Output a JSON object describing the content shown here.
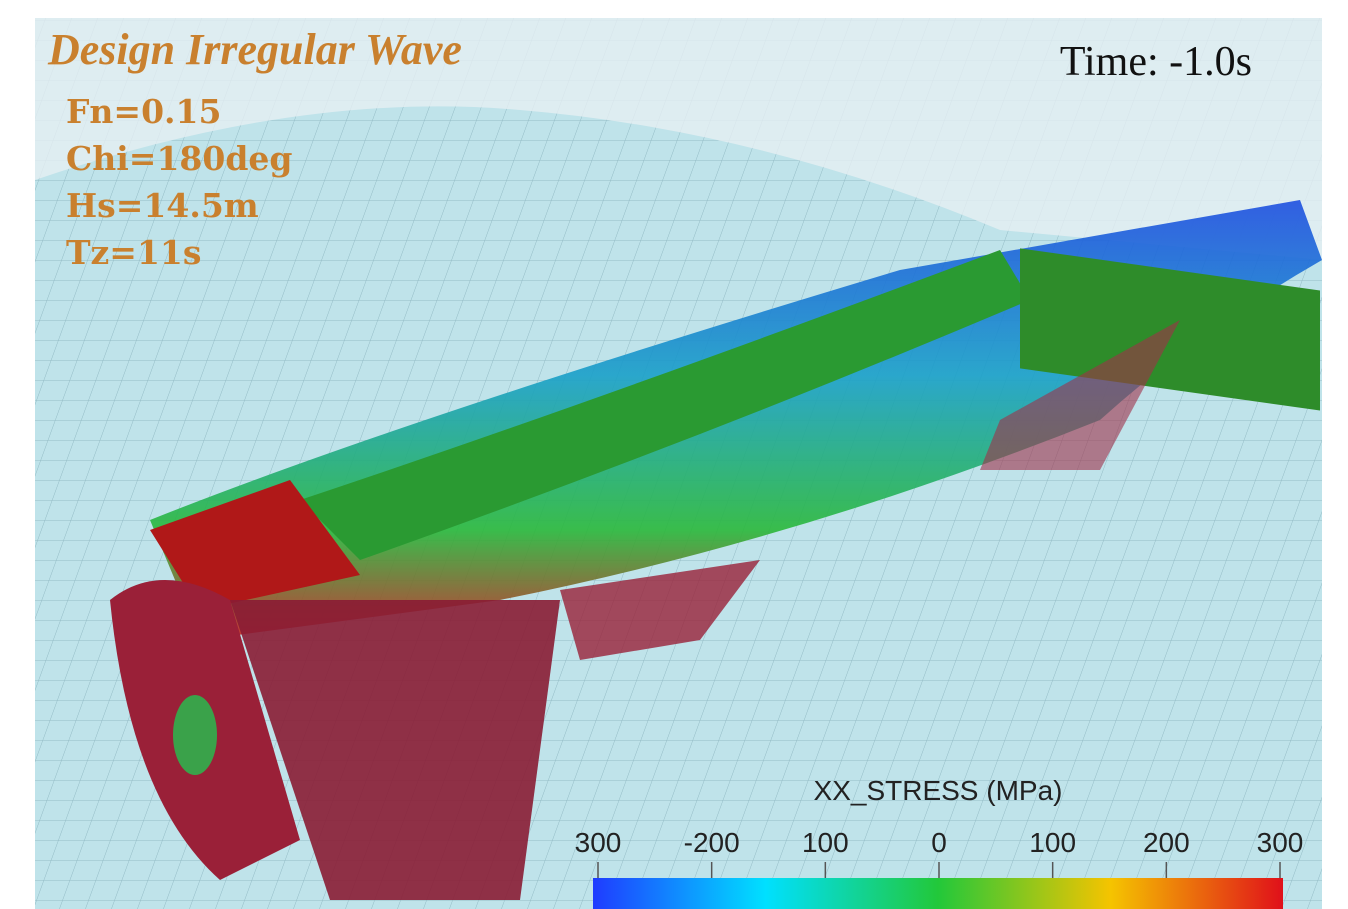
{
  "header": {
    "title": "Design Irregular Wave",
    "time": "Time: -1.0s"
  },
  "parameters": [
    "Fn=0.15",
    "Chi=180deg",
    "Hs=14.5m",
    "Tz=11s"
  ],
  "colorbar": {
    "title": "XX_STRESS (MPa)",
    "ticks": [
      "300",
      "-200",
      "100",
      "0",
      "100",
      "200",
      "300"
    ]
  }
}
